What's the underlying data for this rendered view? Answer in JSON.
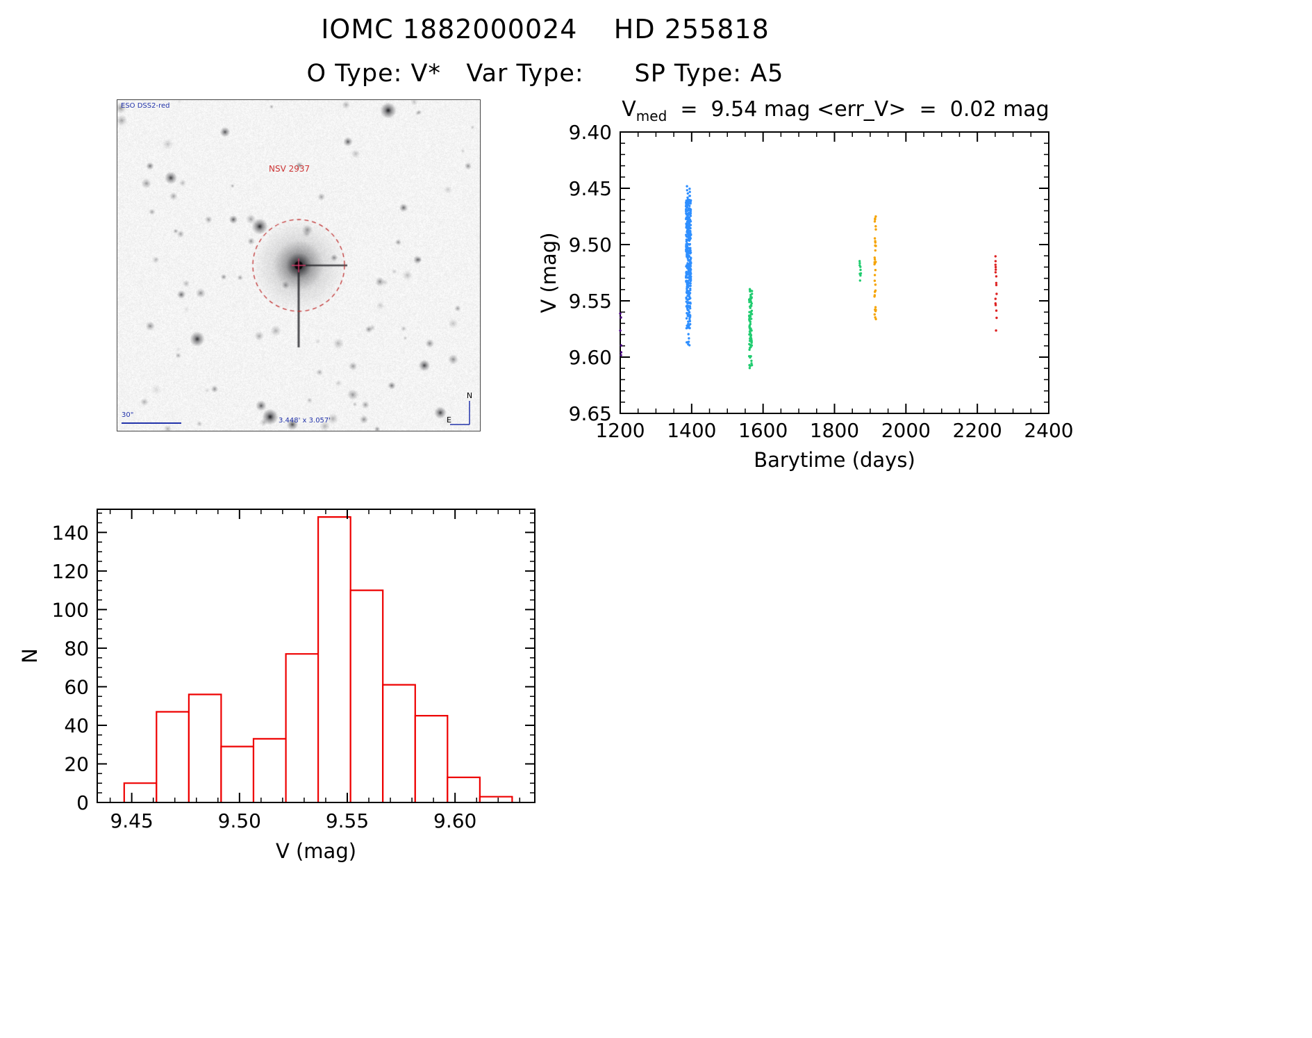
{
  "title": "IOMC 1882000024    HD 255818",
  "subtitle": "O Type: V*   Var Type:      SP Type: A5",
  "finder": {
    "survey_label": "ESO DSS2-red",
    "star_label": "NSV 2937",
    "scale_label": "30\"",
    "size_label": "3.448' x 3.057'",
    "compass": {
      "north": "N",
      "east": "E"
    }
  },
  "chart_data": [
    {
      "type": "scatter",
      "title": "V_med = 9.54 mag <err_V> = 0.02 mag",
      "title_parts": {
        "prefix": "V",
        "sub": "med",
        "rest": "  =  9.54 mag <err_V>  =  0.02 mag"
      },
      "xlabel": "Barytime (days)",
      "ylabel": "V (mag)",
      "xlim": [
        1200,
        2400
      ],
      "ylim": [
        9.4,
        9.65
      ],
      "y_axis_inverted_magnitudes": true,
      "xticks": [
        1200,
        1400,
        1600,
        1800,
        2000,
        2200,
        2400
      ],
      "yticks": [
        9.4,
        9.45,
        9.5,
        9.55,
        9.6,
        9.65
      ],
      "x_minor_step": 50,
      "y_minor_step": 0.01,
      "clusters": [
        {
          "name": "epoch-1200-purple",
          "color": "#4b0082",
          "x": 1201,
          "dx": 3,
          "v1": 9.556,
          "v2": 9.604,
          "n": 6
        },
        {
          "name": "epoch-1390-blue-top",
          "color": "#2f8fff",
          "x": 1391,
          "dx": 5,
          "v1": 9.447,
          "v2": 9.462,
          "n": 12
        },
        {
          "name": "epoch-1390-blue-main",
          "color": "#2f8fff",
          "x": 1391,
          "dx": 7,
          "v1": 9.46,
          "v2": 9.535,
          "n": 260
        },
        {
          "name": "epoch-1390-blue-low",
          "color": "#2f8fff",
          "x": 1391,
          "dx": 6,
          "v1": 9.535,
          "v2": 9.575,
          "n": 80
        },
        {
          "name": "epoch-1390-blue-outliers",
          "color": "#2f8fff",
          "x": 1390,
          "dx": 4,
          "v1": 9.575,
          "v2": 9.59,
          "n": 7
        },
        {
          "name": "epoch-1565-green",
          "color": "#21cc70",
          "x": 1565,
          "dx": 4,
          "v1": 9.538,
          "v2": 9.585,
          "n": 65
        },
        {
          "name": "epoch-1565-green-low",
          "color": "#21cc70",
          "x": 1565,
          "dx": 4,
          "v1": 9.585,
          "v2": 9.611,
          "n": 22
        },
        {
          "name": "epoch-1870-green",
          "color": "#21cc70",
          "x": 1872,
          "dx": 2,
          "v1": 9.512,
          "v2": 9.532,
          "n": 9
        },
        {
          "name": "epoch-1915-orange-top",
          "color": "#f5a300",
          "x": 1914,
          "dx": 2,
          "v1": 9.474,
          "v2": 9.5,
          "n": 9
        },
        {
          "name": "epoch-1915-orange",
          "color": "#f5a300",
          "x": 1914,
          "dx": 2,
          "v1": 9.5,
          "v2": 9.568,
          "n": 26
        },
        {
          "name": "epoch-2250-red",
          "color": "#dd2222",
          "x": 2252,
          "dx": 2,
          "v1": 9.508,
          "v2": 9.577,
          "n": 16
        }
      ]
    },
    {
      "type": "bar",
      "subtype": "histogram",
      "title": "",
      "xlabel": "V (mag)",
      "ylabel": "N",
      "bar_color": "#ee0000",
      "bin_start": 9.4465,
      "bin_width": 0.015,
      "counts": [
        10,
        47,
        56,
        29,
        33,
        77,
        148,
        110,
        61,
        45,
        13,
        3
      ],
      "xlim": [
        9.434,
        9.637
      ],
      "ylim": [
        0,
        152
      ],
      "xticks": [
        9.45,
        9.5,
        9.55,
        9.6
      ],
      "yticks": [
        0,
        20,
        40,
        60,
        80,
        100,
        120,
        140
      ],
      "x_minor_step": 0.01,
      "y_minor_step": 5
    }
  ]
}
